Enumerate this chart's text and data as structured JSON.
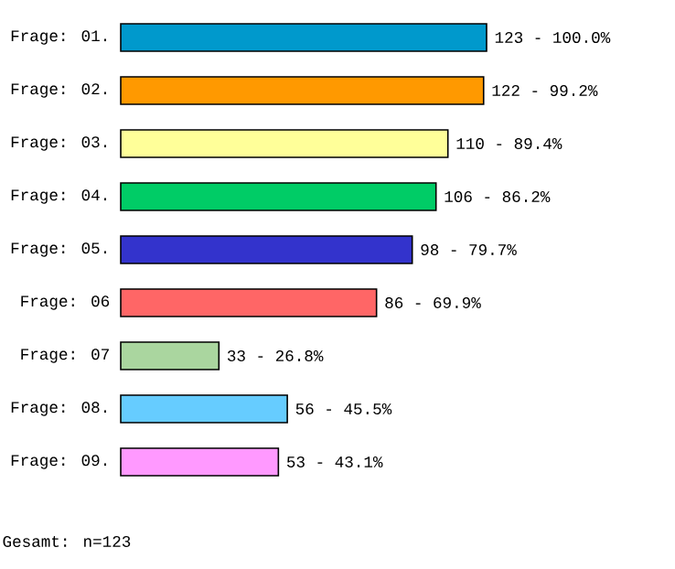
{
  "chart_data": {
    "type": "bar",
    "orientation": "horizontal",
    "categories": [
      "Frage: 01.",
      "Frage: 02.",
      "Frage: 03.",
      "Frage: 04.",
      "Frage: 05.",
      "Frage: 06",
      "Frage: 07",
      "Frage: 08.",
      "Frage: 09."
    ],
    "values": [
      123,
      122,
      110,
      106,
      98,
      86,
      33,
      56,
      53
    ],
    "value_labels": [
      "123 - 100.0%",
      "122 -  99.2%",
      "110 -  89.4%",
      "106 -  86.2%",
      "98 -  79.7%",
      "86 -  69.9%",
      "33 -  26.8%",
      "56 -  45.5%",
      "53 -  43.1%"
    ],
    "colors": [
      "#0099cc",
      "#ff9900",
      "#ffff99",
      "#00cc66",
      "#3333cc",
      "#ff6666",
      "#aad69f",
      "#66ccff",
      "#ff99ff"
    ],
    "annotations": [
      "Gesamt: n=123"
    ]
  }
}
